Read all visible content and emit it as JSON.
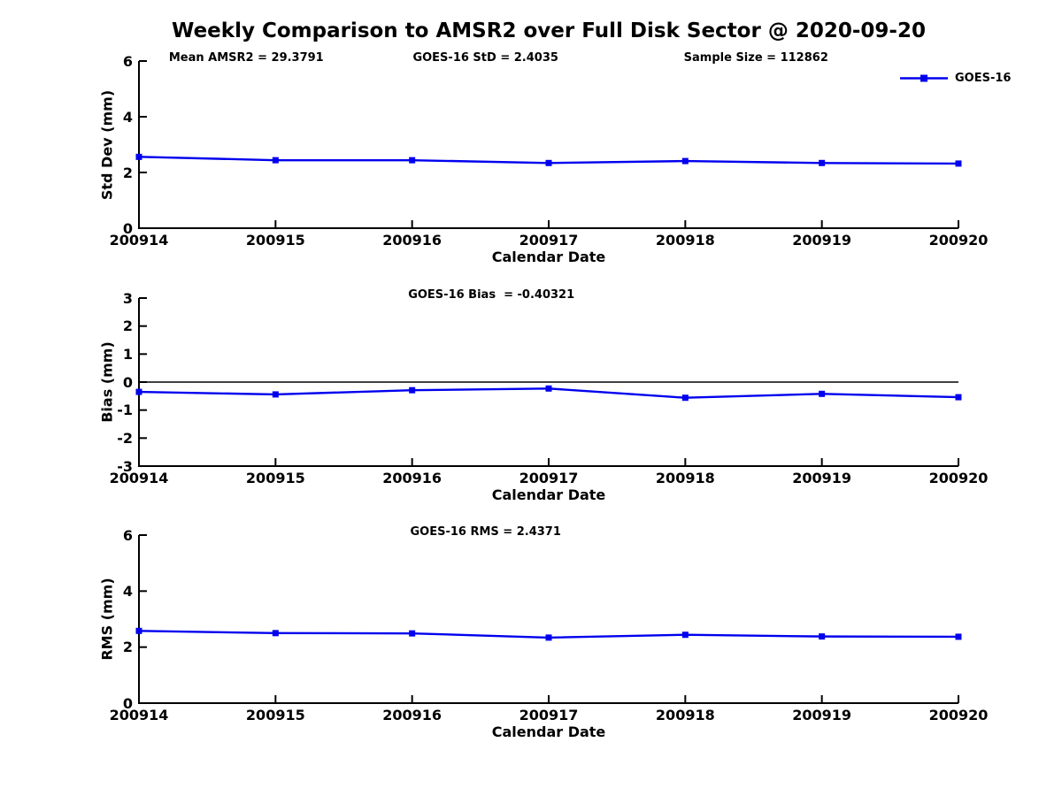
{
  "title": "Weekly Comparison to AMSR2 over Full Disk Sector @ 2020-09-20",
  "colors": {
    "series": "#0000EE",
    "axis": "#000000"
  },
  "legend": {
    "label": "GOES-16"
  },
  "chart_data": [
    {
      "type": "line",
      "name": "std-dev-panel",
      "series_name": "GOES-16",
      "categories": [
        "200914",
        "200915",
        "200916",
        "200917",
        "200918",
        "200919",
        "200920"
      ],
      "values": [
        2.56,
        2.44,
        2.44,
        2.34,
        2.41,
        2.34,
        2.32
      ],
      "xlabel": "Calendar Date",
      "ylabel": "Std Dev (mm)",
      "ylim": [
        0,
        6
      ],
      "yticks": [
        0,
        2,
        4,
        6
      ],
      "annotations": [
        "Mean AMSR2 = 29.3791",
        "GOES-16 StD = 2.4035",
        "Sample Size = 112862"
      ],
      "legend_visible": true,
      "grid": false,
      "legend_position": "top-right"
    },
    {
      "type": "line",
      "name": "bias-panel",
      "series_name": "GOES-16",
      "categories": [
        "200914",
        "200915",
        "200916",
        "200917",
        "200918",
        "200919",
        "200920"
      ],
      "values": [
        -0.35,
        -0.44,
        -0.29,
        -0.23,
        -0.56,
        -0.42,
        -0.54
      ],
      "xlabel": "Calendar Date",
      "ylabel": "Bias (mm)",
      "ylim": [
        -3,
        3
      ],
      "yticks": [
        -3,
        -2,
        -1,
        0,
        1,
        2,
        3
      ],
      "zero_line": true,
      "annotations": [
        "GOES-16 Bias  = -0.40321"
      ],
      "legend_visible": false,
      "grid": false
    },
    {
      "type": "line",
      "name": "rms-panel",
      "series_name": "GOES-16",
      "categories": [
        "200914",
        "200915",
        "200916",
        "200917",
        "200918",
        "200919",
        "200920"
      ],
      "values": [
        2.58,
        2.5,
        2.49,
        2.34,
        2.44,
        2.38,
        2.37
      ],
      "xlabel": "Calendar Date",
      "ylabel": "RMS (mm)",
      "ylim": [
        0,
        6
      ],
      "yticks": [
        0,
        2,
        4,
        6
      ],
      "annotations": [
        "GOES-16 RMS = 2.4371"
      ],
      "legend_visible": false,
      "grid": false
    }
  ]
}
